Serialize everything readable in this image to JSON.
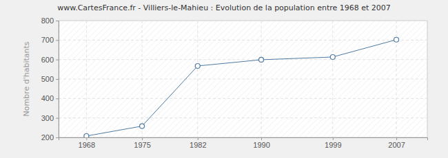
{
  "chart_data": {
    "type": "line",
    "title": "www.CartesFrance.fr - Villiers-le-Mahieu : Evolution de la population entre 1968 et 2007",
    "y_label": "Nombre d'habitants",
    "x": [
      1968,
      1975,
      1982,
      1990,
      1999,
      2007
    ],
    "values": [
      207,
      258,
      567,
      599,
      613,
      702
    ],
    "color": "#4f7aa3",
    "marker": "circle",
    "xlim": [
      1964.5,
      2010.9
    ],
    "xticks": [
      1968,
      1975,
      1982,
      1990,
      1999,
      2007
    ],
    "ylim": [
      200,
      800
    ],
    "yticks": [
      200,
      300,
      400,
      500,
      600,
      700,
      800
    ],
    "grid": true
  }
}
